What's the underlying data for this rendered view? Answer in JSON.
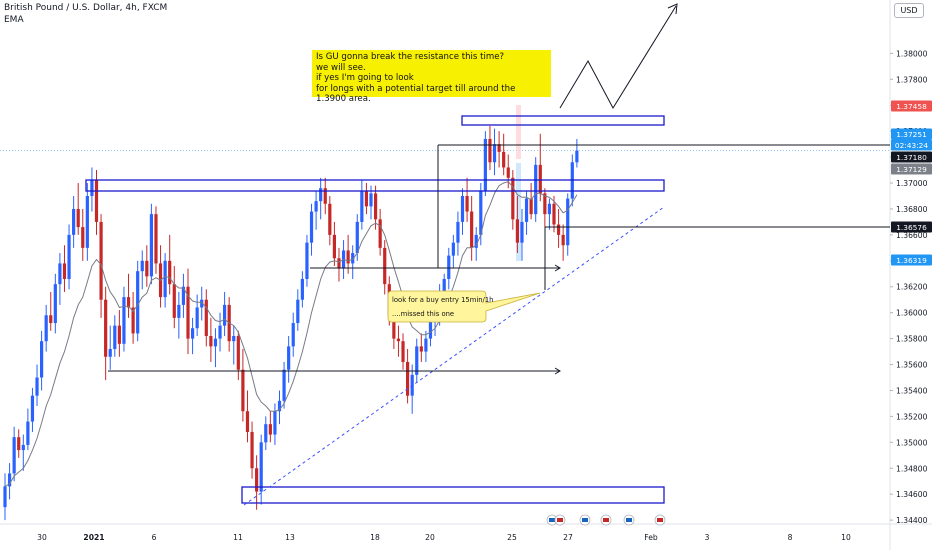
{
  "header": {
    "title": "British Pound / U.S. Dollar, 4h, FXCM",
    "indicator": "EMA",
    "currency": "USD"
  },
  "annotations": {
    "top_note": "Is GU gonna break the resistance this time?\nwe will see.\nif yes I'm going to look\nfor longs with a potential target till around the 1.3900 area.",
    "callout_line1": "look for a buy entry 15min/1h",
    "callout_line2": "....missed this one"
  },
  "colors": {
    "up": "#2962ff",
    "down": "#c62828",
    "ema": "#787b86",
    "zone": "#1a1acd",
    "trend": "#3f51ff",
    "price_current": "#2196f3",
    "price_dark": "#131722",
    "price_grey": "#7c8089",
    "price_red": "#ef5350"
  },
  "chart_data": {
    "type": "candlestick",
    "symbol": "GBPUSD",
    "timeframe": "4h",
    "ylim": [
      1.3437,
      1.3835
    ],
    "y_ticks": [
      "1.38000",
      "1.37800",
      "1.37600",
      "1.37400",
      "1.37200",
      "1.37000",
      "1.36800",
      "1.36600",
      "1.36400",
      "1.36200",
      "1.36000",
      "1.35800",
      "1.35600",
      "1.35400",
      "1.35200",
      "1.35000",
      "1.34800",
      "1.34600",
      "1.34400"
    ],
    "x_ticks": [
      "30",
      "2021",
      "6",
      "11",
      "13",
      "18",
      "20",
      "25",
      "27",
      "Feb",
      "3",
      "8",
      "10"
    ],
    "price_labels": [
      {
        "text": "1.37458",
        "kind": "red",
        "value": 1.37458
      },
      {
        "text": "1.37251",
        "kind": "current",
        "value": 1.37251
      },
      {
        "text": "02:43:24",
        "kind": "current_timer",
        "value": 1.37251
      },
      {
        "text": "1.37180",
        "kind": "dark",
        "value": 1.3718
      },
      {
        "text": "1.37129",
        "kind": "grey",
        "value": 1.37129
      },
      {
        "text": "1.36576",
        "kind": "dark",
        "value": 1.36576
      },
      {
        "text": "1.36319",
        "kind": "current",
        "value": 1.36319
      }
    ],
    "candles": [
      [
        1.345,
        1.3476,
        1.344,
        1.3466
      ],
      [
        1.3466,
        1.3484,
        1.3456,
        1.3476
      ],
      [
        1.3476,
        1.3512,
        1.347,
        1.3504
      ],
      [
        1.3504,
        1.351,
        1.3488,
        1.3494
      ],
      [
        1.3494,
        1.3506,
        1.3478,
        1.3498
      ],
      [
        1.3498,
        1.3526,
        1.3494,
        1.3516
      ],
      [
        1.3516,
        1.3542,
        1.3508,
        1.3536
      ],
      [
        1.3536,
        1.356,
        1.3528,
        1.355
      ],
      [
        1.355,
        1.3586,
        1.354,
        1.3578
      ],
      [
        1.3578,
        1.3606,
        1.357,
        1.3598
      ],
      [
        1.3598,
        1.3616,
        1.3586,
        1.3592
      ],
      [
        1.3592,
        1.363,
        1.3584,
        1.3622
      ],
      [
        1.3622,
        1.3646,
        1.3606,
        1.3638
      ],
      [
        1.3638,
        1.3652,
        1.3616,
        1.3626
      ],
      [
        1.3626,
        1.3668,
        1.3618,
        1.366
      ],
      [
        1.366,
        1.369,
        1.365,
        1.368
      ],
      [
        1.368,
        1.37,
        1.366,
        1.3666
      ],
      [
        1.3666,
        1.368,
        1.364,
        1.365
      ],
      [
        1.365,
        1.37,
        1.364,
        1.369
      ],
      [
        1.369,
        1.3712,
        1.3678,
        1.3702
      ],
      [
        1.3702,
        1.371,
        1.366,
        1.367
      ],
      [
        1.367,
        1.3676,
        1.3596,
        1.361
      ],
      [
        1.361,
        1.362,
        1.3548,
        1.3566
      ],
      [
        1.3566,
        1.359,
        1.3556,
        1.3572
      ],
      [
        1.3572,
        1.3598,
        1.3566,
        1.359
      ],
      [
        1.359,
        1.3602,
        1.3566,
        1.3576
      ],
      [
        1.3576,
        1.362,
        1.357,
        1.3612
      ],
      [
        1.3612,
        1.363,
        1.3596,
        1.3604
      ],
      [
        1.3604,
        1.3616,
        1.3576,
        1.3584
      ],
      [
        1.3584,
        1.364,
        1.3578,
        1.3632
      ],
      [
        1.3632,
        1.3648,
        1.3618,
        1.364
      ],
      [
        1.364,
        1.3652,
        1.362,
        1.3628
      ],
      [
        1.3628,
        1.3684,
        1.3622,
        1.3676
      ],
      [
        1.3676,
        1.3682,
        1.363,
        1.3638
      ],
      [
        1.3638,
        1.3652,
        1.3604,
        1.3612
      ],
      [
        1.3612,
        1.3646,
        1.3604,
        1.364
      ],
      [
        1.364,
        1.366,
        1.3614,
        1.3622
      ],
      [
        1.3622,
        1.3636,
        1.3588,
        1.3596
      ],
      [
        1.3596,
        1.3616,
        1.358,
        1.3606
      ],
      [
        1.3606,
        1.363,
        1.3596,
        1.362
      ],
      [
        1.362,
        1.3634,
        1.3568,
        1.358
      ],
      [
        1.358,
        1.3596,
        1.3568,
        1.3588
      ],
      [
        1.3588,
        1.3614,
        1.3582,
        1.3604
      ],
      [
        1.3604,
        1.362,
        1.3594,
        1.361
      ],
      [
        1.361,
        1.3618,
        1.3574,
        1.3582
      ],
      [
        1.3582,
        1.3596,
        1.3562,
        1.3574
      ],
      [
        1.3574,
        1.3588,
        1.3558,
        1.358
      ],
      [
        1.358,
        1.36,
        1.357,
        1.359
      ],
      [
        1.359,
        1.3616,
        1.3582,
        1.3606
      ],
      [
        1.3606,
        1.3612,
        1.357,
        1.3578
      ],
      [
        1.3578,
        1.359,
        1.356,
        1.3582
      ],
      [
        1.3582,
        1.3586,
        1.3548,
        1.3556
      ],
      [
        1.3556,
        1.3572,
        1.3516,
        1.3524
      ],
      [
        1.3524,
        1.354,
        1.35,
        1.3508
      ],
      [
        1.3508,
        1.3516,
        1.3472,
        1.348
      ],
      [
        1.348,
        1.349,
        1.3448,
        1.3462
      ],
      [
        1.3462,
        1.3506,
        1.3452,
        1.35
      ],
      [
        1.35,
        1.352,
        1.3494,
        1.3514
      ],
      [
        1.3514,
        1.3524,
        1.35,
        1.3506
      ],
      [
        1.3506,
        1.353,
        1.3498,
        1.3524
      ],
      [
        1.3524,
        1.354,
        1.3514,
        1.3532
      ],
      [
        1.3532,
        1.3562,
        1.3526,
        1.3556
      ],
      [
        1.3556,
        1.3582,
        1.3546,
        1.3574
      ],
      [
        1.3574,
        1.36,
        1.3566,
        1.3592
      ],
      [
        1.3592,
        1.3618,
        1.3586,
        1.361
      ],
      [
        1.361,
        1.3632,
        1.3604,
        1.3626
      ],
      [
        1.3626,
        1.366,
        1.362,
        1.3654
      ],
      [
        1.3654,
        1.3684,
        1.3644,
        1.3678
      ],
      [
        1.3678,
        1.3694,
        1.3664,
        1.3686
      ],
      [
        1.3686,
        1.3704,
        1.3672,
        1.3696
      ],
      [
        1.3696,
        1.3704,
        1.3676,
        1.3684
      ],
      [
        1.3684,
        1.369,
        1.3652,
        1.366
      ],
      [
        1.366,
        1.367,
        1.3636,
        1.3642
      ],
      [
        1.3642,
        1.365,
        1.3624,
        1.3634
      ],
      [
        1.3634,
        1.3656,
        1.3626,
        1.3648
      ],
      [
        1.3648,
        1.366,
        1.363,
        1.3638
      ],
      [
        1.3638,
        1.3652,
        1.3626,
        1.3646
      ],
      [
        1.3646,
        1.3676,
        1.364,
        1.367
      ],
      [
        1.367,
        1.3702,
        1.3664,
        1.3694
      ],
      [
        1.3694,
        1.37,
        1.3676,
        1.3682
      ],
      [
        1.3682,
        1.3698,
        1.3672,
        1.3692
      ],
      [
        1.3692,
        1.3698,
        1.3664,
        1.3672
      ],
      [
        1.3672,
        1.368,
        1.3644,
        1.365
      ],
      [
        1.365,
        1.3656,
        1.3614,
        1.3622
      ],
      [
        1.3622,
        1.3628,
        1.359,
        1.3598
      ],
      [
        1.3598,
        1.3606,
        1.3572,
        1.358
      ],
      [
        1.358,
        1.359,
        1.3566,
        1.3578
      ],
      [
        1.3578,
        1.3584,
        1.3556,
        1.3562
      ],
      [
        1.3562,
        1.3572,
        1.353,
        1.3536
      ],
      [
        1.3536,
        1.356,
        1.3522,
        1.3552
      ],
      [
        1.3552,
        1.358,
        1.3546,
        1.3574
      ],
      [
        1.3574,
        1.3584,
        1.3562,
        1.357
      ],
      [
        1.357,
        1.3586,
        1.3562,
        1.358
      ],
      [
        1.358,
        1.36,
        1.3574,
        1.3594
      ],
      [
        1.3594,
        1.3608,
        1.3582,
        1.36
      ],
      [
        1.36,
        1.3622,
        1.359,
        1.3614
      ],
      [
        1.3614,
        1.363,
        1.3602,
        1.3626
      ],
      [
        1.3626,
        1.365,
        1.3618,
        1.3644
      ],
      [
        1.3644,
        1.366,
        1.3634,
        1.3654
      ],
      [
        1.3654,
        1.3678,
        1.3644,
        1.367
      ],
      [
        1.367,
        1.3696,
        1.366,
        1.369
      ],
      [
        1.369,
        1.3704,
        1.367,
        1.3678
      ],
      [
        1.3678,
        1.369,
        1.364,
        1.365
      ],
      [
        1.365,
        1.3666,
        1.364,
        1.366
      ],
      [
        1.366,
        1.37,
        1.3652,
        1.3694
      ],
      [
        1.3694,
        1.374,
        1.369,
        1.3734
      ],
      [
        1.3734,
        1.3744,
        1.371,
        1.3716
      ],
      [
        1.3716,
        1.3742,
        1.3706,
        1.373
      ],
      [
        1.373,
        1.374,
        1.3712,
        1.3724
      ],
      [
        1.3724,
        1.3738,
        1.3706,
        1.3712
      ],
      [
        1.3712,
        1.3722,
        1.3696,
        1.3704
      ],
      [
        1.3704,
        1.371,
        1.3664,
        1.3672
      ],
      [
        1.3672,
        1.369,
        1.3646,
        1.3654
      ],
      [
        1.3654,
        1.368,
        1.364,
        1.367
      ],
      [
        1.367,
        1.3694,
        1.366,
        1.3688
      ],
      [
        1.3688,
        1.37,
        1.3672,
        1.3676
      ],
      [
        1.3676,
        1.372,
        1.367,
        1.3714
      ],
      [
        1.3714,
        1.3738,
        1.3686,
        1.3692
      ],
      [
        1.3692,
        1.3696,
        1.3666,
        1.3676
      ],
      [
        1.3676,
        1.3688,
        1.3664,
        1.3684
      ],
      [
        1.3684,
        1.369,
        1.3662,
        1.3668
      ],
      [
        1.3668,
        1.368,
        1.365,
        1.366
      ],
      [
        1.366,
        1.3668,
        1.364,
        1.3652
      ],
      [
        1.3652,
        1.3692,
        1.3644,
        1.3688
      ],
      [
        1.3688,
        1.3722,
        1.3682,
        1.3716
      ],
      [
        1.3716,
        1.3734,
        1.3712,
        1.3725
      ]
    ],
    "ema": [
      1.3466,
      1.3468,
      1.3474,
      1.3477,
      1.348,
      1.3486,
      1.3494,
      1.3503,
      1.3515,
      1.3528,
      1.3537,
      1.3549,
      1.3561,
      1.357,
      1.3582,
      1.3596,
      1.3606,
      1.3612,
      1.3624,
      1.3636,
      1.3641,
      1.3637,
      1.3625,
      1.3616,
      1.3611,
      1.3604,
      1.3605,
      1.3605,
      1.3601,
      1.3606,
      1.3612,
      1.3615,
      1.3625,
      1.3627,
      1.3625,
      1.3628,
      1.3627,
      1.3622,
      1.3619,
      1.3619,
      1.3613,
      1.3609,
      1.3608,
      1.3608,
      1.3604,
      1.3598,
      1.3594,
      1.3593,
      1.3595,
      1.3592,
      1.359,
      1.3585,
      1.3575,
      1.3565,
      1.3551,
      1.3537,
      1.3531,
      1.3528,
      1.3524,
      1.3524,
      1.3525,
      1.353,
      1.3538,
      1.3547,
      1.3558,
      1.357,
      1.3584,
      1.36,
      1.3613,
      1.3626,
      1.3635,
      1.3639,
      1.364,
      1.3639,
      1.3641,
      1.364,
      1.3641,
      1.3646,
      1.3655,
      1.3661,
      1.3667,
      1.3669,
      1.3667,
      1.366,
      1.3648,
      1.3635,
      1.3624,
      1.3612,
      1.3597,
      1.3589,
      1.3586,
      1.3583,
      1.3583,
      1.3585,
      1.3588,
      1.3594,
      1.3601,
      1.3611,
      1.362,
      1.3631,
      1.3644,
      1.365,
      1.365,
      1.3652,
      1.366,
      1.3675,
      1.3683,
      1.3692,
      1.3698,
      1.37,
      1.3701,
      1.3697,
      1.3691,
      1.3689,
      1.3689,
      1.3687,
      1.3692,
      1.3692,
      1.369,
      1.3689,
      1.3686,
      1.3682,
      1.3677,
      1.3679,
      1.3685,
      1.3691
    ]
  }
}
